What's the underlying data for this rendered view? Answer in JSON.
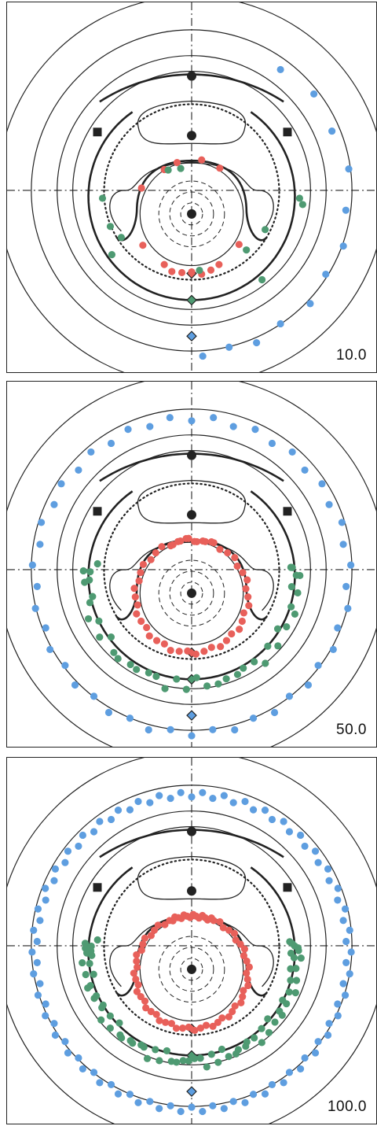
{
  "colors": {
    "line": "#222222",
    "red": "#e8605a",
    "green": "#4e9a72",
    "blue": "#5e9ee0"
  },
  "panels": [
    {
      "label": "10.0",
      "red_count": 14,
      "green_count": 12,
      "blue_count": 12
    },
    {
      "label": "50.0",
      "red_count": 48,
      "green_count": 40,
      "blue_count": 46
    },
    {
      "label": "100.0",
      "red_count": 66,
      "green_count": 70,
      "blue_count": 92
    }
  ]
}
